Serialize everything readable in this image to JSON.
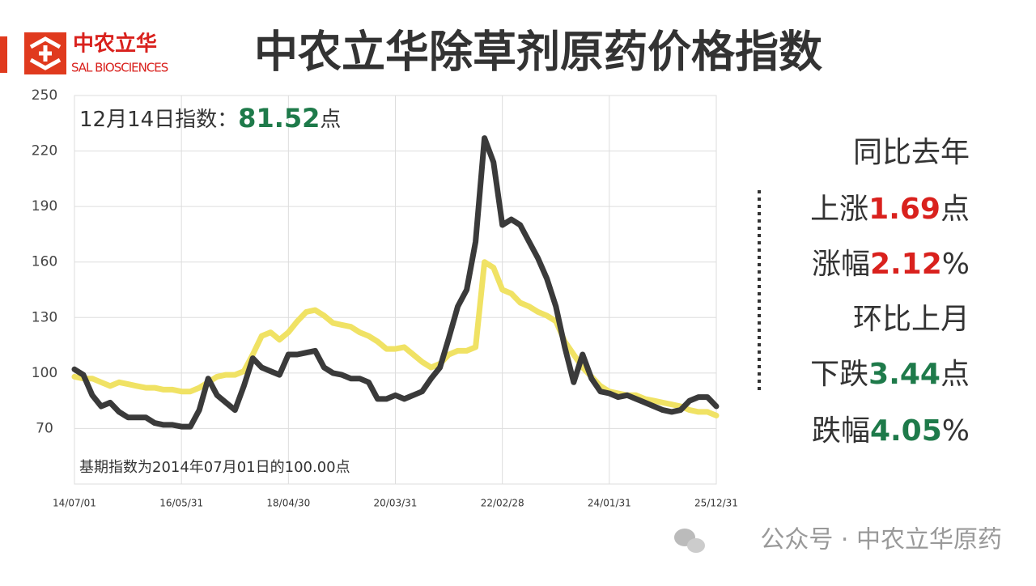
{
  "header": {
    "title": "中农立华除草剂原药价格指数",
    "logo_cn": "中农立华",
    "logo_en": "SAL BIOSCIENCES"
  },
  "chart_data": {
    "type": "line",
    "annotation": {
      "prefix": "12月14日指数：",
      "value": "81.52",
      "suffix": "点"
    },
    "note": "基期指数为2014年07月01日的100.00点",
    "categories": [
      "14/07/01",
      null,
      null,
      null,
      null,
      null,
      null,
      null,
      null,
      null,
      null,
      null,
      "16/05/31",
      null,
      null,
      null,
      null,
      null,
      null,
      null,
      null,
      null,
      null,
      null,
      "18/04/30",
      null,
      null,
      null,
      null,
      null,
      null,
      null,
      null,
      null,
      null,
      null,
      "20/03/31",
      null,
      null,
      null,
      null,
      null,
      null,
      null,
      null,
      null,
      null,
      null,
      "22/02/28",
      null,
      null,
      null,
      null,
      null,
      null,
      null,
      null,
      null,
      null,
      null,
      "24/01/31",
      null,
      null,
      null,
      null,
      null,
      null,
      null,
      null,
      null,
      null,
      null,
      "25/12/31"
    ],
    "series": [
      {
        "color": "#f0e264",
        "values": [
          98,
          97,
          97,
          95,
          93,
          95,
          94,
          93,
          92,
          92,
          91,
          91,
          90,
          90,
          92,
          95,
          98,
          99,
          99,
          101,
          110,
          120,
          122,
          118,
          122,
          128,
          133,
          134,
          131,
          127,
          126,
          125,
          122,
          120,
          117,
          113,
          113,
          114,
          110,
          106,
          103,
          105,
          110,
          112,
          112,
          114,
          160,
          157,
          145,
          143,
          138,
          136,
          133,
          131,
          128,
          117,
          110,
          103,
          98,
          93,
          90,
          89,
          88,
          88,
          86,
          85,
          84,
          83,
          82,
          80,
          79,
          79,
          77
        ]
      },
      {
        "color": "#3a3a3a",
        "values": [
          102,
          99,
          88,
          82,
          84,
          79,
          76,
          76,
          76,
          73,
          72,
          72,
          71,
          71,
          80,
          97,
          88,
          84,
          80,
          93,
          108,
          103,
          101,
          99,
          110,
          110,
          111,
          112,
          103,
          100,
          99,
          97,
          97,
          95,
          86,
          86,
          88,
          86,
          88,
          90,
          97,
          103,
          119,
          136,
          145,
          171,
          227,
          214,
          180,
          183,
          180,
          171,
          162,
          151,
          136,
          114,
          95,
          110,
          97,
          90,
          89,
          87,
          88,
          86,
          84,
          82,
          80,
          79,
          80,
          85,
          87,
          87,
          82
        ]
      }
    ],
    "ylim": [
      40,
      250
    ],
    "yticks": [
      70,
      100,
      130,
      160,
      190,
      220,
      250
    ],
    "grid": true
  },
  "panel": {
    "yoy_title": "同比去年",
    "yoy_rise": [
      "上涨",
      "1.69",
      "点"
    ],
    "yoy_pct": [
      "涨幅",
      "2.12",
      "%"
    ],
    "mom_title": "环比上月",
    "mom_fall": [
      "下跌",
      "3.44",
      "点"
    ],
    "mom_pct": [
      "跌幅",
      "4.05",
      "%"
    ]
  },
  "watermark": "公众号 · 中农立华原药"
}
